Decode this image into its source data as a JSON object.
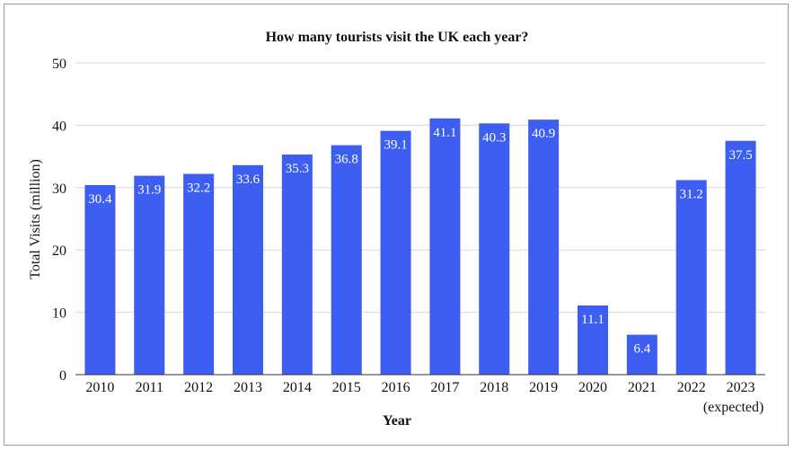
{
  "chart_data": {
    "type": "bar",
    "title": "How many tourists visit the UK each year?",
    "xlabel": "Year",
    "ylabel": "Total Visits (million)",
    "ylim": [
      0,
      50
    ],
    "yticks": [
      0,
      10,
      20,
      30,
      40,
      50
    ],
    "grid": true,
    "legend": "none",
    "bar_color": "#3d5ef0",
    "categories": [
      "2010",
      "2011",
      "2012",
      "2013",
      "2014",
      "2015",
      "2016",
      "2017",
      "2018",
      "2019",
      "2020",
      "2021",
      "2022",
      "2023"
    ],
    "category_sublabels": [
      "",
      "",
      "",
      "",
      "",
      "",
      "",
      "",
      "",
      "",
      "",
      "",
      "",
      "(expected)"
    ],
    "values": [
      30.4,
      31.9,
      32.2,
      33.6,
      35.3,
      36.8,
      39.1,
      41.1,
      40.3,
      40.9,
      11.1,
      6.4,
      31.2,
      37.5
    ],
    "data_labels": [
      "30.4",
      "31.9",
      "32.2",
      "33.6",
      "35.3",
      "36.8",
      "39.1",
      "41.1",
      "40.3",
      "40.9",
      "11.1",
      "6.4",
      "31.2",
      "37.5"
    ]
  }
}
